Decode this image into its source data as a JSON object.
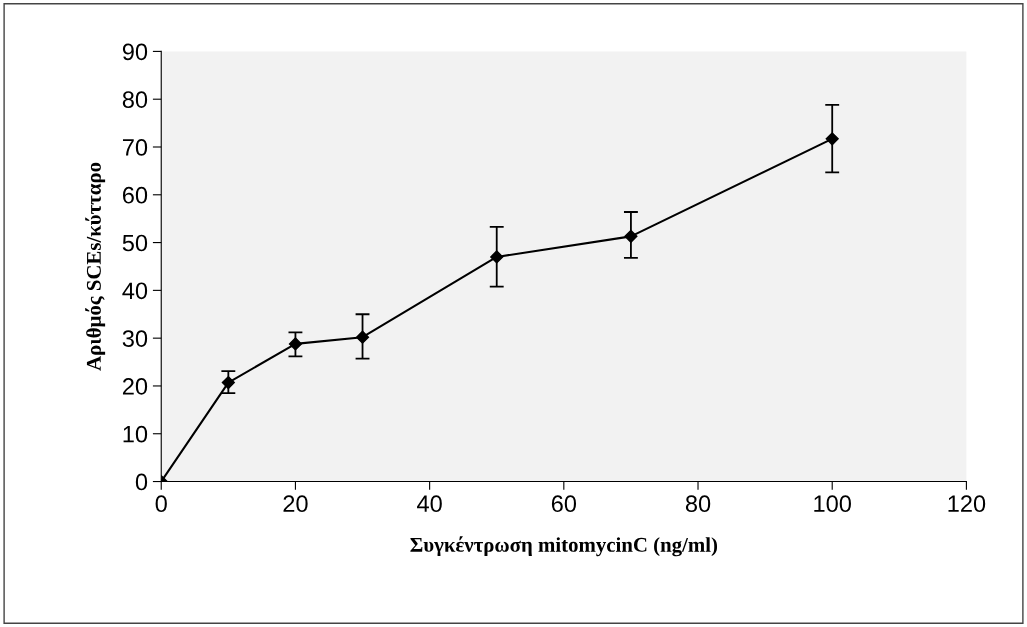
{
  "chart_data": {
    "type": "line",
    "xlabel": "Συγκέντρωση mitomycinC (ng/ml)",
    "ylabel": "Αριθμός SCEs/κύτταρο",
    "x": [
      0,
      10,
      20,
      30,
      50,
      70,
      100
    ],
    "series": [
      {
        "color": "#000000",
        "values": [
          0,
          20.7,
          28.8,
          30.2,
          47.0,
          51.3,
          71.7
        ],
        "errors": [
          null,
          [
            18.5,
            23.1
          ],
          [
            26.2,
            31.2
          ],
          [
            25.7,
            35.0
          ],
          [
            40.8,
            53.3
          ],
          [
            46.8,
            56.4
          ],
          [
            64.7,
            78.8
          ]
        ]
      }
    ],
    "xlim": [
      0,
      120
    ],
    "xticks": [
      0,
      20,
      40,
      60,
      80,
      100,
      120
    ],
    "ylim": [
      0,
      90
    ],
    "yticks": [
      0,
      10,
      20,
      30,
      40,
      50,
      60,
      70,
      80,
      90
    ],
    "grid": false,
    "legend": false,
    "marker": "diamond",
    "line_style": "solid"
  }
}
